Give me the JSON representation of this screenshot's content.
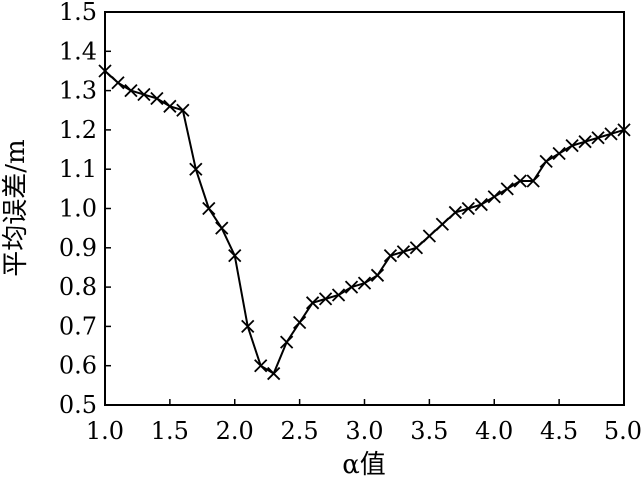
{
  "chart_data": {
    "type": "line",
    "title": "",
    "xlabel": "α值",
    "ylabel": "平均误差/m",
    "xlim": [
      1.0,
      5.0
    ],
    "ylim": [
      0.5,
      1.5
    ],
    "grid": false,
    "legend": "none",
    "xticks": [
      "1.0",
      "1.5",
      "2.0",
      "2.5",
      "3.0",
      "3.5",
      "4.0",
      "4.5",
      "5.0"
    ],
    "yticks": [
      "0.5",
      "0.6",
      "0.7",
      "0.8",
      "0.9",
      "1.0",
      "1.1",
      "1.2",
      "1.3",
      "1.4",
      "1.5"
    ],
    "series": [
      {
        "marker": "x",
        "color": "#000000",
        "x": [
          1.0,
          1.1,
          1.2,
          1.3,
          1.4,
          1.5,
          1.6,
          1.7,
          1.8,
          1.9,
          2.0,
          2.1,
          2.2,
          2.3,
          2.4,
          2.5,
          2.6,
          2.7,
          2.8,
          2.9,
          3.0,
          3.1,
          3.2,
          3.3,
          3.4,
          3.5,
          3.6,
          3.7,
          3.8,
          3.9,
          4.0,
          4.1,
          4.2,
          4.3,
          4.4,
          4.5,
          4.6,
          4.7,
          4.8,
          4.9,
          5.0
        ],
        "values": [
          1.35,
          1.32,
          1.3,
          1.29,
          1.28,
          1.26,
          1.25,
          1.1,
          1.0,
          0.95,
          0.88,
          0.7,
          0.6,
          0.58,
          0.66,
          0.71,
          0.76,
          0.77,
          0.78,
          0.8,
          0.81,
          0.83,
          0.88,
          0.89,
          0.9,
          0.93,
          0.96,
          0.99,
          1.0,
          1.01,
          1.03,
          1.05,
          1.07,
          1.07,
          1.12,
          1.14,
          1.16,
          1.17,
          1.18,
          1.19,
          1.2
        ]
      }
    ]
  }
}
